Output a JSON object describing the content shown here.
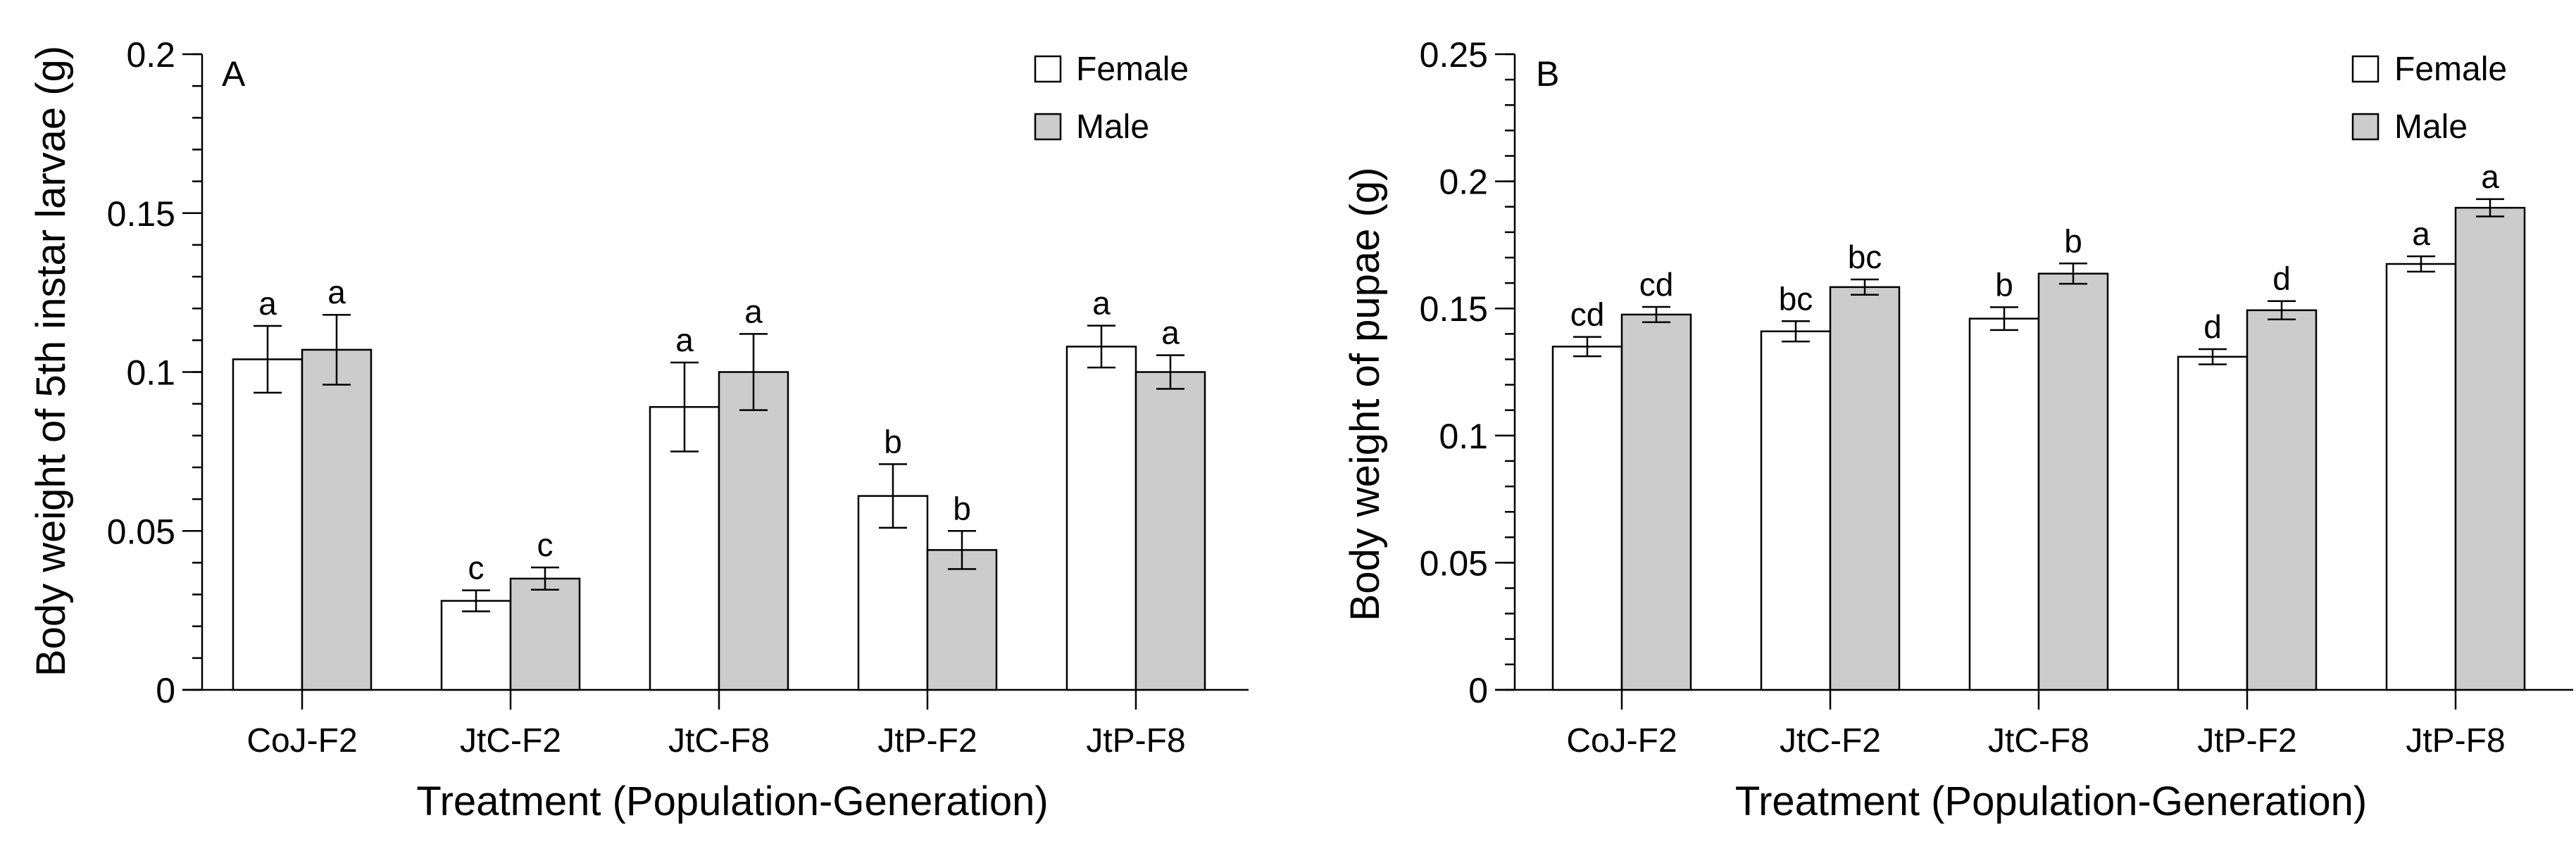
{
  "chart_data": [
    {
      "type": "bar",
      "panel_label": "A",
      "title": "",
      "xlabel": "Treatment (Population-Generation)",
      "ylabel": "Body weight of 5th instar larvae (g)",
      "categories": [
        "CoJ-F2",
        "JtC-F2",
        "JtC-F8",
        "JtP-F2",
        "JtP-F8"
      ],
      "ylim": [
        0,
        0.2
      ],
      "yticks": [
        0,
        0.05,
        0.1,
        0.15,
        0.2
      ],
      "ytick_labels": [
        "0",
        "0.05",
        "0.1",
        "0.15",
        "0.2"
      ],
      "minor_tick_step": 0.01,
      "grid": false,
      "legend_position": "top-right",
      "series": [
        {
          "name": "Female",
          "color": "#ffffff",
          "values": [
            0.104,
            0.028,
            0.089,
            0.061,
            0.108
          ],
          "errors": [
            0.0105,
            0.0033,
            0.014,
            0.01,
            0.0066
          ],
          "letters": [
            "a",
            "c",
            "a",
            "b",
            "a"
          ]
        },
        {
          "name": "Male",
          "color": "#cccccc",
          "values": [
            0.107,
            0.035,
            0.1,
            0.044,
            0.1
          ],
          "errors": [
            0.011,
            0.0035,
            0.012,
            0.006,
            0.0053
          ],
          "letters": [
            "a",
            "c",
            "a",
            "b",
            "a"
          ]
        }
      ]
    },
    {
      "type": "bar",
      "panel_label": "B",
      "title": "",
      "xlabel": "Treatment (Population-Generation)",
      "ylabel": "Body weight of pupae (g)",
      "categories": [
        "CoJ-F2",
        "JtC-F2",
        "JtC-F8",
        "JtP-F2",
        "JtP-F8"
      ],
      "ylim": [
        0,
        0.25
      ],
      "yticks": [
        0,
        0.05,
        0.1,
        0.15,
        0.2,
        0.25
      ],
      "ytick_labels": [
        "0",
        "0.05",
        "0.1",
        "0.15",
        "0.2",
        "0.25"
      ],
      "minor_tick_step": 0.01,
      "grid": false,
      "legend_position": "top-right",
      "series": [
        {
          "name": "Female",
          "color": "#ffffff",
          "values": [
            0.135,
            0.141,
            0.146,
            0.131,
            0.1675
          ],
          "errors": [
            0.0038,
            0.004,
            0.0045,
            0.003,
            0.003
          ],
          "letters": [
            "cd",
            "bc",
            "b",
            "d",
            "a"
          ]
        },
        {
          "name": "Male",
          "color": "#cccccc",
          "values": [
            0.1476,
            0.1584,
            0.1637,
            0.1493,
            0.1896
          ],
          "errors": [
            0.003,
            0.003,
            0.004,
            0.0036,
            0.0034
          ],
          "letters": [
            "cd",
            "bc",
            "b",
            "d",
            "a"
          ]
        }
      ]
    }
  ]
}
